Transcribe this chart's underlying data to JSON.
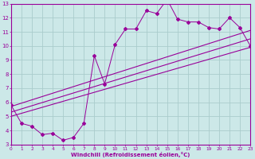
{
  "xlabel": "Windchill (Refroidissement éolien,°C)",
  "bg_color": "#cce8e8",
  "line_color": "#990099",
  "grid_color": "#aacccc",
  "xlim": [
    0,
    23
  ],
  "ylim": [
    3,
    13
  ],
  "xticks": [
    0,
    1,
    2,
    3,
    4,
    5,
    6,
    7,
    8,
    9,
    10,
    11,
    12,
    13,
    14,
    15,
    16,
    17,
    18,
    19,
    20,
    21,
    22,
    23
  ],
  "yticks": [
    3,
    4,
    5,
    6,
    7,
    8,
    9,
    10,
    11,
    12,
    13
  ],
  "jagged_x": [
    0,
    1,
    2,
    3,
    4,
    5,
    6,
    7,
    8,
    9,
    10,
    11,
    12,
    13,
    14,
    15,
    16,
    17,
    18,
    19,
    20,
    21,
    22,
    23
  ],
  "jagged_y": [
    5.8,
    4.5,
    4.3,
    3.7,
    3.8,
    3.3,
    3.5,
    4.5,
    9.3,
    7.3,
    10.1,
    11.2,
    11.2,
    12.5,
    12.3,
    13.3,
    11.9,
    11.7,
    11.7,
    11.3,
    11.2,
    12.0,
    11.3,
    10.0
  ],
  "trend_lines": [
    [
      5.0,
      9.9
    ],
    [
      5.3,
      10.5
    ],
    [
      5.7,
      11.1
    ]
  ]
}
